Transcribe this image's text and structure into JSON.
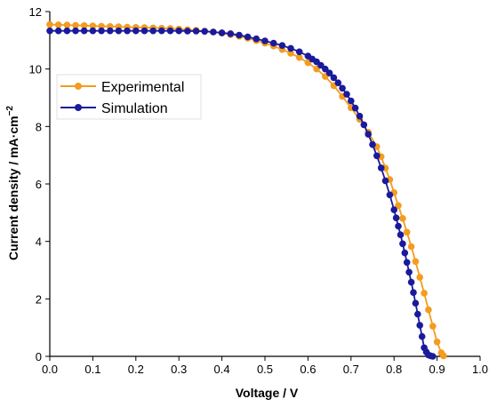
{
  "chart_data": {
    "type": "line",
    "xlabel": "Voltage / V",
    "ylabel_main": "Current density / mA·cm",
    "ylabel_sup": "−2",
    "xlim": [
      0,
      1.0
    ],
    "ylim": [
      0,
      12
    ],
    "xticks": [
      "0.0",
      "0.1",
      "0.2",
      "0.3",
      "0.4",
      "0.5",
      "0.6",
      "0.7",
      "0.8",
      "0.9",
      "1.0"
    ],
    "yticks": [
      "0",
      "2",
      "4",
      "6",
      "8",
      "10",
      "12"
    ],
    "grid": false,
    "legend_position": "upper-left",
    "series": [
      {
        "name": "Experimental",
        "color": "#f39c1f",
        "marker": "circle",
        "x": [
          0.0,
          0.02,
          0.04,
          0.06,
          0.08,
          0.1,
          0.12,
          0.14,
          0.16,
          0.18,
          0.2,
          0.22,
          0.24,
          0.26,
          0.28,
          0.3,
          0.32,
          0.34,
          0.36,
          0.38,
          0.4,
          0.42,
          0.44,
          0.46,
          0.48,
          0.5,
          0.52,
          0.54,
          0.56,
          0.58,
          0.6,
          0.62,
          0.64,
          0.66,
          0.68,
          0.7,
          0.72,
          0.74,
          0.76,
          0.77,
          0.78,
          0.79,
          0.8,
          0.81,
          0.82,
          0.83,
          0.84,
          0.85,
          0.86,
          0.87,
          0.88,
          0.89,
          0.9,
          0.91,
          0.915
        ],
        "y": [
          11.55,
          11.54,
          11.53,
          11.52,
          11.51,
          11.5,
          11.49,
          11.48,
          11.47,
          11.46,
          11.45,
          11.44,
          11.43,
          11.42,
          11.41,
          11.39,
          11.37,
          11.35,
          11.32,
          11.29,
          11.25,
          11.2,
          11.14,
          11.07,
          10.99,
          10.9,
          10.8,
          10.68,
          10.55,
          10.4,
          10.22,
          10.0,
          9.74,
          9.42,
          9.05,
          8.65,
          8.25,
          7.8,
          7.3,
          6.95,
          6.55,
          6.15,
          5.7,
          5.25,
          4.8,
          4.32,
          3.82,
          3.3,
          2.75,
          2.2,
          1.62,
          1.05,
          0.5,
          0.12,
          0.02
        ]
      },
      {
        "name": "Simulation",
        "color": "#1a1a9c",
        "marker": "circle",
        "x": [
          0.0,
          0.02,
          0.04,
          0.06,
          0.08,
          0.1,
          0.12,
          0.14,
          0.16,
          0.18,
          0.2,
          0.22,
          0.24,
          0.26,
          0.28,
          0.3,
          0.32,
          0.34,
          0.36,
          0.38,
          0.4,
          0.42,
          0.44,
          0.46,
          0.48,
          0.5,
          0.52,
          0.54,
          0.56,
          0.58,
          0.6,
          0.61,
          0.62,
          0.63,
          0.64,
          0.65,
          0.66,
          0.67,
          0.68,
          0.69,
          0.7,
          0.71,
          0.72,
          0.73,
          0.74,
          0.75,
          0.76,
          0.77,
          0.78,
          0.79,
          0.8,
          0.805,
          0.81,
          0.815,
          0.82,
          0.825,
          0.83,
          0.835,
          0.84,
          0.845,
          0.85,
          0.855,
          0.86,
          0.865,
          0.87,
          0.875,
          0.88,
          0.885,
          0.89
        ],
        "y": [
          11.33,
          11.33,
          11.33,
          11.33,
          11.33,
          11.33,
          11.33,
          11.33,
          11.33,
          11.33,
          11.33,
          11.33,
          11.33,
          11.33,
          11.33,
          11.33,
          11.32,
          11.32,
          11.31,
          11.29,
          11.26,
          11.23,
          11.18,
          11.12,
          11.05,
          10.98,
          10.9,
          10.82,
          10.72,
          10.6,
          10.45,
          10.35,
          10.25,
          10.13,
          10.0,
          9.86,
          9.7,
          9.52,
          9.33,
          9.12,
          8.89,
          8.64,
          8.36,
          8.06,
          7.73,
          7.37,
          6.98,
          6.56,
          6.11,
          5.62,
          5.1,
          4.82,
          4.53,
          4.23,
          3.92,
          3.6,
          3.27,
          2.93,
          2.58,
          2.22,
          1.85,
          1.47,
          1.08,
          0.69,
          0.3,
          0.15,
          0.05,
          0.02,
          0.0
        ]
      }
    ]
  }
}
